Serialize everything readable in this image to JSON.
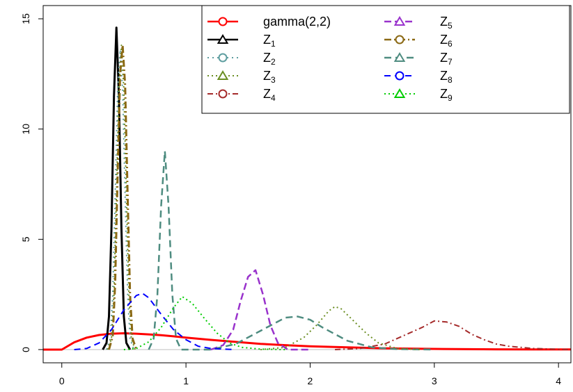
{
  "chart_data": {
    "type": "line",
    "xlim": [
      -0.15,
      4.1
    ],
    "ylim": [
      -0.6,
      15.6
    ],
    "x_ticks": [
      0,
      1,
      2,
      3,
      4
    ],
    "y_ticks": [
      0,
      5,
      10,
      15
    ],
    "grid": false,
    "legend_position": "top-right",
    "series": [
      {
        "name": "gamma(2,2)",
        "legend_main": "gamma(2,2)",
        "legend_sub": "",
        "color": "#ff0000",
        "dash": "",
        "width": 3,
        "marker": "circle",
        "points": [
          [
            -0.15,
            0
          ],
          [
            0,
            0
          ],
          [
            0.1,
            0.33
          ],
          [
            0.2,
            0.54
          ],
          [
            0.3,
            0.66
          ],
          [
            0.4,
            0.72
          ],
          [
            0.5,
            0.74
          ],
          [
            0.6,
            0.72
          ],
          [
            0.7,
            0.69
          ],
          [
            0.8,
            0.65
          ],
          [
            0.9,
            0.6
          ],
          [
            1.0,
            0.54
          ],
          [
            1.2,
            0.44
          ],
          [
            1.4,
            0.35
          ],
          [
            1.6,
            0.26
          ],
          [
            1.8,
            0.2
          ],
          [
            2.0,
            0.15
          ],
          [
            2.3,
            0.1
          ],
          [
            2.6,
            0.06
          ],
          [
            3.0,
            0.03
          ],
          [
            3.5,
            0.01
          ],
          [
            4.1,
            0.005
          ]
        ]
      },
      {
        "name": "Z1",
        "legend_main": "Z",
        "legend_sub": "1",
        "color": "#000000",
        "dash": "",
        "width": 3,
        "marker": "triangle",
        "points": [
          [
            0.33,
            0
          ],
          [
            0.36,
            0.3
          ],
          [
            0.38,
            1.5
          ],
          [
            0.4,
            5.5
          ],
          [
            0.42,
            11.5
          ],
          [
            0.44,
            14.6
          ],
          [
            0.46,
            11.5
          ],
          [
            0.48,
            5.5
          ],
          [
            0.5,
            1.5
          ],
          [
            0.52,
            0.3
          ],
          [
            0.55,
            0
          ]
        ]
      },
      {
        "name": "Z2",
        "legend_main": "Z",
        "legend_sub": "2",
        "color": "#5f9ea0",
        "dash": "2 5",
        "width": 2,
        "marker": "circle",
        "points": [
          [
            0.36,
            0
          ],
          [
            0.39,
            0.5
          ],
          [
            0.41,
            2.5
          ],
          [
            0.43,
            7
          ],
          [
            0.45,
            11.8
          ],
          [
            0.47,
            13.6
          ],
          [
            0.49,
            11.8
          ],
          [
            0.51,
            7
          ],
          [
            0.53,
            2.5
          ],
          [
            0.55,
            0.5
          ],
          [
            0.58,
            0
          ]
        ]
      },
      {
        "name": "Z3",
        "legend_main": "Z",
        "legend_sub": "3",
        "color": "#6b8e23",
        "dash": "2 4",
        "width": 2,
        "marker": "triangle",
        "points": [
          [
            0.37,
            0
          ],
          [
            0.4,
            0.5
          ],
          [
            0.42,
            2.5
          ],
          [
            0.44,
            7
          ],
          [
            0.46,
            11.8
          ],
          [
            0.48,
            13.8
          ],
          [
            0.5,
            11.8
          ],
          [
            0.52,
            7
          ],
          [
            0.54,
            2.5
          ],
          [
            0.56,
            0.5
          ],
          [
            0.59,
            0
          ]
        ]
      },
      {
        "name": "Z4",
        "legend_main": "Z",
        "legend_sub": "4",
        "color": "#a52a2a",
        "dash": "8 4 2 4",
        "width": 2,
        "marker": "circle",
        "points": [
          [
            2.2,
            0
          ],
          [
            2.4,
            0.05
          ],
          [
            2.6,
            0.25
          ],
          [
            2.8,
            0.75
          ],
          [
            2.9,
            1.0
          ],
          [
            3.0,
            1.3
          ],
          [
            3.1,
            1.25
          ],
          [
            3.2,
            1.05
          ],
          [
            3.3,
            0.7
          ],
          [
            3.4,
            0.45
          ],
          [
            3.5,
            0.25
          ],
          [
            3.6,
            0.15
          ],
          [
            3.8,
            0.05
          ],
          [
            4.1,
            0
          ]
        ]
      },
      {
        "name": "Z5",
        "legend_main": "Z",
        "legend_sub": "5",
        "color": "#9932cc",
        "dash": "10 5",
        "width": 2.5,
        "marker": "triangle",
        "points": [
          [
            1.2,
            0
          ],
          [
            1.3,
            0.2
          ],
          [
            1.38,
            0.9
          ],
          [
            1.44,
            2.2
          ],
          [
            1.5,
            3.3
          ],
          [
            1.56,
            3.6
          ],
          [
            1.62,
            2.5
          ],
          [
            1.68,
            1.1
          ],
          [
            1.74,
            0.3
          ],
          [
            1.82,
            0
          ],
          [
            2.0,
            0
          ]
        ]
      },
      {
        "name": "Z6",
        "legend_main": "Z",
        "legend_sub": "6",
        "color": "#8b6914",
        "dash": "10 4 2 4",
        "width": 3,
        "marker": "circle",
        "points": [
          [
            0.38,
            0
          ],
          [
            0.41,
            0.6
          ],
          [
            0.43,
            3
          ],
          [
            0.45,
            8
          ],
          [
            0.47,
            12.5
          ],
          [
            0.49,
            13.8
          ],
          [
            0.51,
            12
          ],
          [
            0.53,
            7
          ],
          [
            0.55,
            2.5
          ],
          [
            0.57,
            0.5
          ],
          [
            0.6,
            0
          ]
        ]
      },
      {
        "name": "Z7",
        "legend_main": "Z",
        "legend_sub": "7",
        "color": "#4e8c80",
        "dash": "10 6",
        "width": 2.5,
        "marker": "triangle",
        "points": [
          [
            0.7,
            0
          ],
          [
            0.74,
            0.5
          ],
          [
            0.77,
            2.5
          ],
          [
            0.8,
            6.5
          ],
          [
            0.83,
            9.0
          ],
          [
            0.86,
            6.5
          ],
          [
            0.89,
            2.5
          ],
          [
            0.92,
            0.5
          ],
          [
            0.96,
            0
          ],
          [
            1.2,
            0
          ],
          [
            1.4,
            0.25
          ],
          [
            1.6,
            0.85
          ],
          [
            1.8,
            1.45
          ],
          [
            1.9,
            1.5
          ],
          [
            2.0,
            1.35
          ],
          [
            2.1,
            1.0
          ],
          [
            2.3,
            0.4
          ],
          [
            2.5,
            0.1
          ],
          [
            2.7,
            0.02
          ],
          [
            3.0,
            0
          ]
        ]
      },
      {
        "name": "Z8",
        "legend_main": "Z",
        "legend_sub": "8",
        "color": "#0000ff",
        "dash": "9 6",
        "width": 2,
        "marker": "circle",
        "points": [
          [
            0.1,
            0
          ],
          [
            0.2,
            0.05
          ],
          [
            0.3,
            0.3
          ],
          [
            0.4,
            0.9
          ],
          [
            0.5,
            1.8
          ],
          [
            0.6,
            2.45
          ],
          [
            0.65,
            2.55
          ],
          [
            0.7,
            2.35
          ],
          [
            0.8,
            1.6
          ],
          [
            0.9,
            0.9
          ],
          [
            1.0,
            0.45
          ],
          [
            1.1,
            0.15
          ],
          [
            1.2,
            0.05
          ],
          [
            1.4,
            0
          ]
        ]
      },
      {
        "name": "Z9",
        "legend_main": "Z",
        "legend_sub": "9",
        "color": "#00cc00",
        "dash": "2 4",
        "width": 2,
        "marker": "triangle",
        "points": [
          [
            0.5,
            0
          ],
          [
            0.6,
            0.05
          ],
          [
            0.7,
            0.35
          ],
          [
            0.8,
            1.0
          ],
          [
            0.9,
            1.9
          ],
          [
            0.97,
            2.4
          ],
          [
            1.05,
            2.1
          ],
          [
            1.15,
            1.4
          ],
          [
            1.25,
            0.75
          ],
          [
            1.35,
            0.3
          ],
          [
            1.45,
            0.1
          ],
          [
            1.6,
            0.02
          ],
          [
            1.8,
            0
          ]
        ]
      },
      {
        "name": "Z9 tail",
        "legend_main": "",
        "legend_sub": "",
        "color": "#6b8e23",
        "dash": "2 4",
        "width": 2,
        "marker": "",
        "points": [
          [
            1.6,
            0
          ],
          [
            1.8,
            0.1
          ],
          [
            1.95,
            0.55
          ],
          [
            2.05,
            1.1
          ],
          [
            2.15,
            1.75
          ],
          [
            2.2,
            1.95
          ],
          [
            2.25,
            1.85
          ],
          [
            2.35,
            1.3
          ],
          [
            2.45,
            0.75
          ],
          [
            2.55,
            0.3
          ],
          [
            2.7,
            0.05
          ],
          [
            2.9,
            0
          ]
        ]
      }
    ]
  }
}
